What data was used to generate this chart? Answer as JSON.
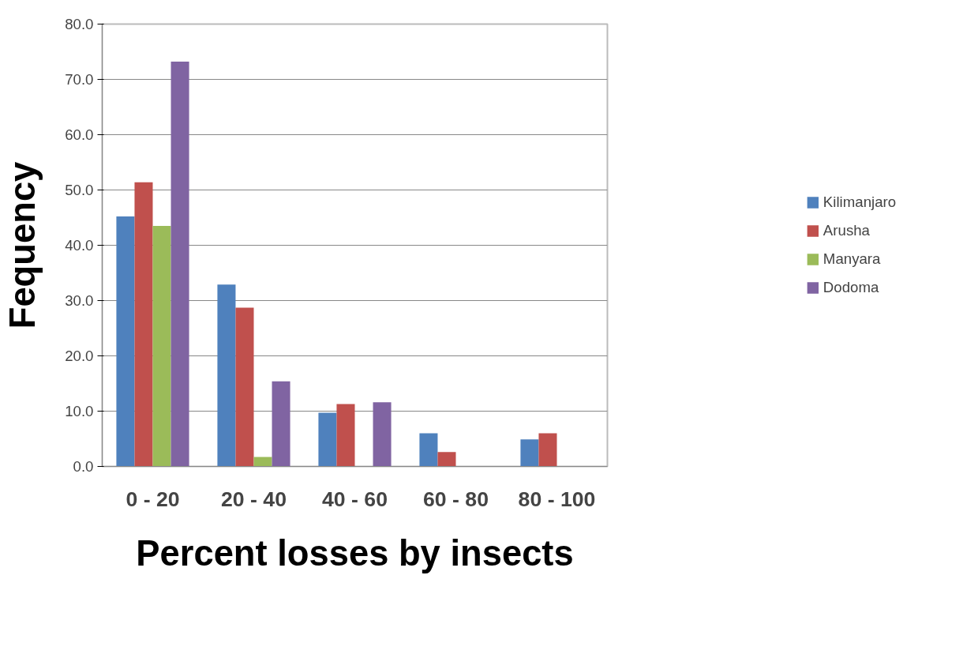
{
  "chart_data": {
    "type": "bar",
    "xlabel": "Percent losses by insects",
    "ylabel": "Fequency",
    "categories": [
      "0 - 20",
      "20 - 40",
      "40 - 60",
      "60 - 80",
      "80 - 100"
    ],
    "series": [
      {
        "name": "Kilimanjaro",
        "color": "#4f81bd",
        "values": [
          45.2,
          32.9,
          9.7,
          6.0,
          4.9
        ]
      },
      {
        "name": "Arusha",
        "color": "#c0504d",
        "values": [
          51.4,
          28.7,
          11.3,
          2.6,
          6.0
        ]
      },
      {
        "name": "Manyara",
        "color": "#9bbb59",
        "values": [
          43.5,
          1.7,
          0,
          0,
          0
        ]
      },
      {
        "name": "Dodoma",
        "color": "#8064a2",
        "values": [
          73.2,
          15.4,
          11.6,
          0,
          0
        ]
      }
    ],
    "ylim": [
      0,
      80
    ],
    "yticks": [
      {
        "value": 0,
        "label": "0.0"
      },
      {
        "value": 10,
        "label": "10.0"
      },
      {
        "value": 20,
        "label": "20.0"
      },
      {
        "value": 30,
        "label": "30.0"
      },
      {
        "value": 40,
        "label": "40.0"
      },
      {
        "value": 50,
        "label": "50.0"
      },
      {
        "value": 60,
        "label": "60.0"
      },
      {
        "value": 70,
        "label": "70.0"
      },
      {
        "value": 80,
        "label": "80.0"
      }
    ],
    "grid": "y",
    "legend": "right"
  }
}
